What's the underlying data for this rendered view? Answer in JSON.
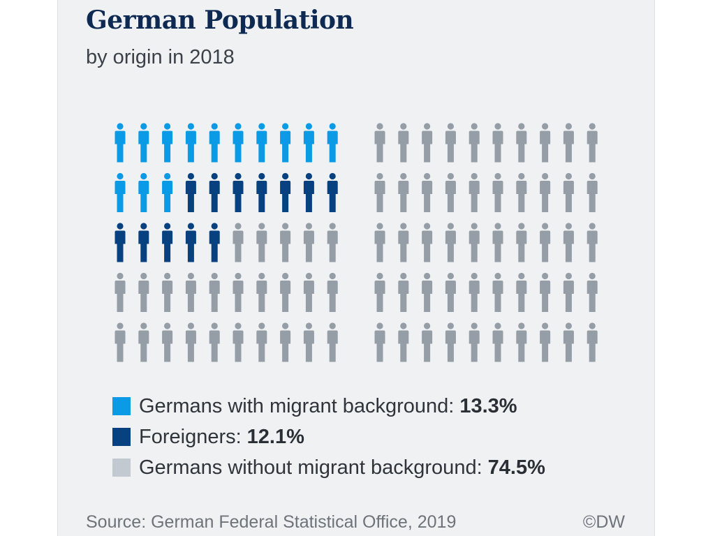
{
  "title": "German Population",
  "subtitle": "by origin in 2018",
  "source": "Source: German Federal Statistical Office, 2019",
  "credit": "©DW",
  "colors": {
    "background": "#f0f1f3",
    "title": "#0e2a52"
  },
  "icon": "person-icon",
  "chart_data": {
    "type": "pictogram",
    "unit_count": 100,
    "categories": [
      "Germans with migrant background",
      "Foreigners",
      "Germans without migrant background"
    ],
    "values": [
      13.3,
      12.1,
      74.5
    ],
    "icons_per_category": [
      13,
      12,
      75
    ],
    "colors": [
      "#0b9ae6",
      "#07417f",
      "#959da6"
    ],
    "value_labels": [
      "13.3%",
      "12.1%",
      "74.5%"
    ]
  },
  "legend": [
    {
      "label": "Germans with migrant background:",
      "value": "13.3%",
      "color": "#0b9ae6"
    },
    {
      "label": "Foreigners:",
      "value": "12.1%",
      "color": "#07417f"
    },
    {
      "label": "Germans without migrant background:",
      "value": "74.5%",
      "color": "#c3c9d0"
    }
  ]
}
